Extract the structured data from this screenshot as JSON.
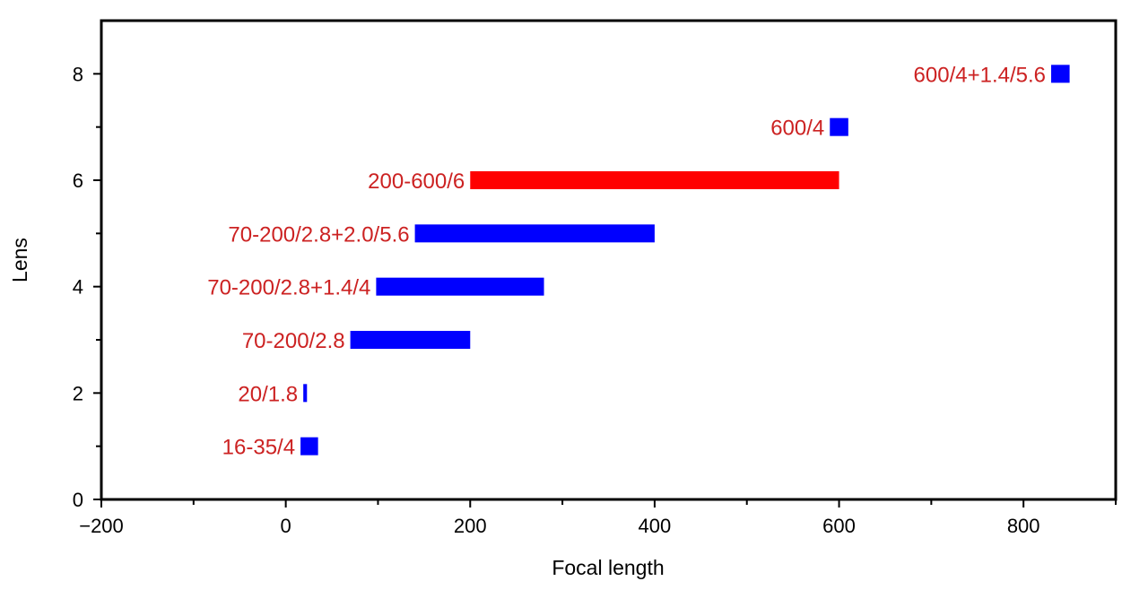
{
  "chart_data": {
    "type": "bar",
    "orientation": "horizontal",
    "title": "",
    "xlabel": "Focal length",
    "ylabel": "Lens",
    "xlim": [
      -200,
      900
    ],
    "ylim": [
      0,
      9
    ],
    "xticks": [
      -200,
      0,
      200,
      400,
      600,
      800
    ],
    "xtick_labels": [
      "−200",
      "0",
      "200",
      "400",
      "600",
      "800"
    ],
    "xminor": [
      -100,
      100,
      300,
      500,
      700,
      900
    ],
    "yticks": [
      0,
      2,
      4,
      6,
      8
    ],
    "ytick_labels": [
      "0",
      "2",
      "4",
      "6",
      "8"
    ],
    "yminor": [
      1,
      3,
      5,
      7
    ],
    "grid": false,
    "label_color": "#cc2222",
    "bars": [
      {
        "lens": 1,
        "label": "16-35/4",
        "start": 16,
        "end": 35,
        "color": "#0000ff"
      },
      {
        "lens": 2,
        "label": "20/1.8",
        "start": 19,
        "end": 23,
        "color": "#0000ff"
      },
      {
        "lens": 3,
        "label": "70-200/2.8",
        "start": 70,
        "end": 200,
        "color": "#0000ff"
      },
      {
        "lens": 4,
        "label": "70-200/2.8+1.4/4",
        "start": 98,
        "end": 280,
        "color": "#0000ff"
      },
      {
        "lens": 5,
        "label": "70-200/2.8+2.0/5.6",
        "start": 140,
        "end": 400,
        "color": "#0000ff"
      },
      {
        "lens": 6,
        "label": "200-600/6",
        "start": 200,
        "end": 600,
        "color": "#ff0000"
      },
      {
        "lens": 7,
        "label": "600/4",
        "start": 590,
        "end": 610,
        "color": "#0000ff"
      },
      {
        "lens": 8,
        "label": "600/4+1.4/5.6",
        "start": 830,
        "end": 850,
        "color": "#0000ff"
      }
    ]
  }
}
